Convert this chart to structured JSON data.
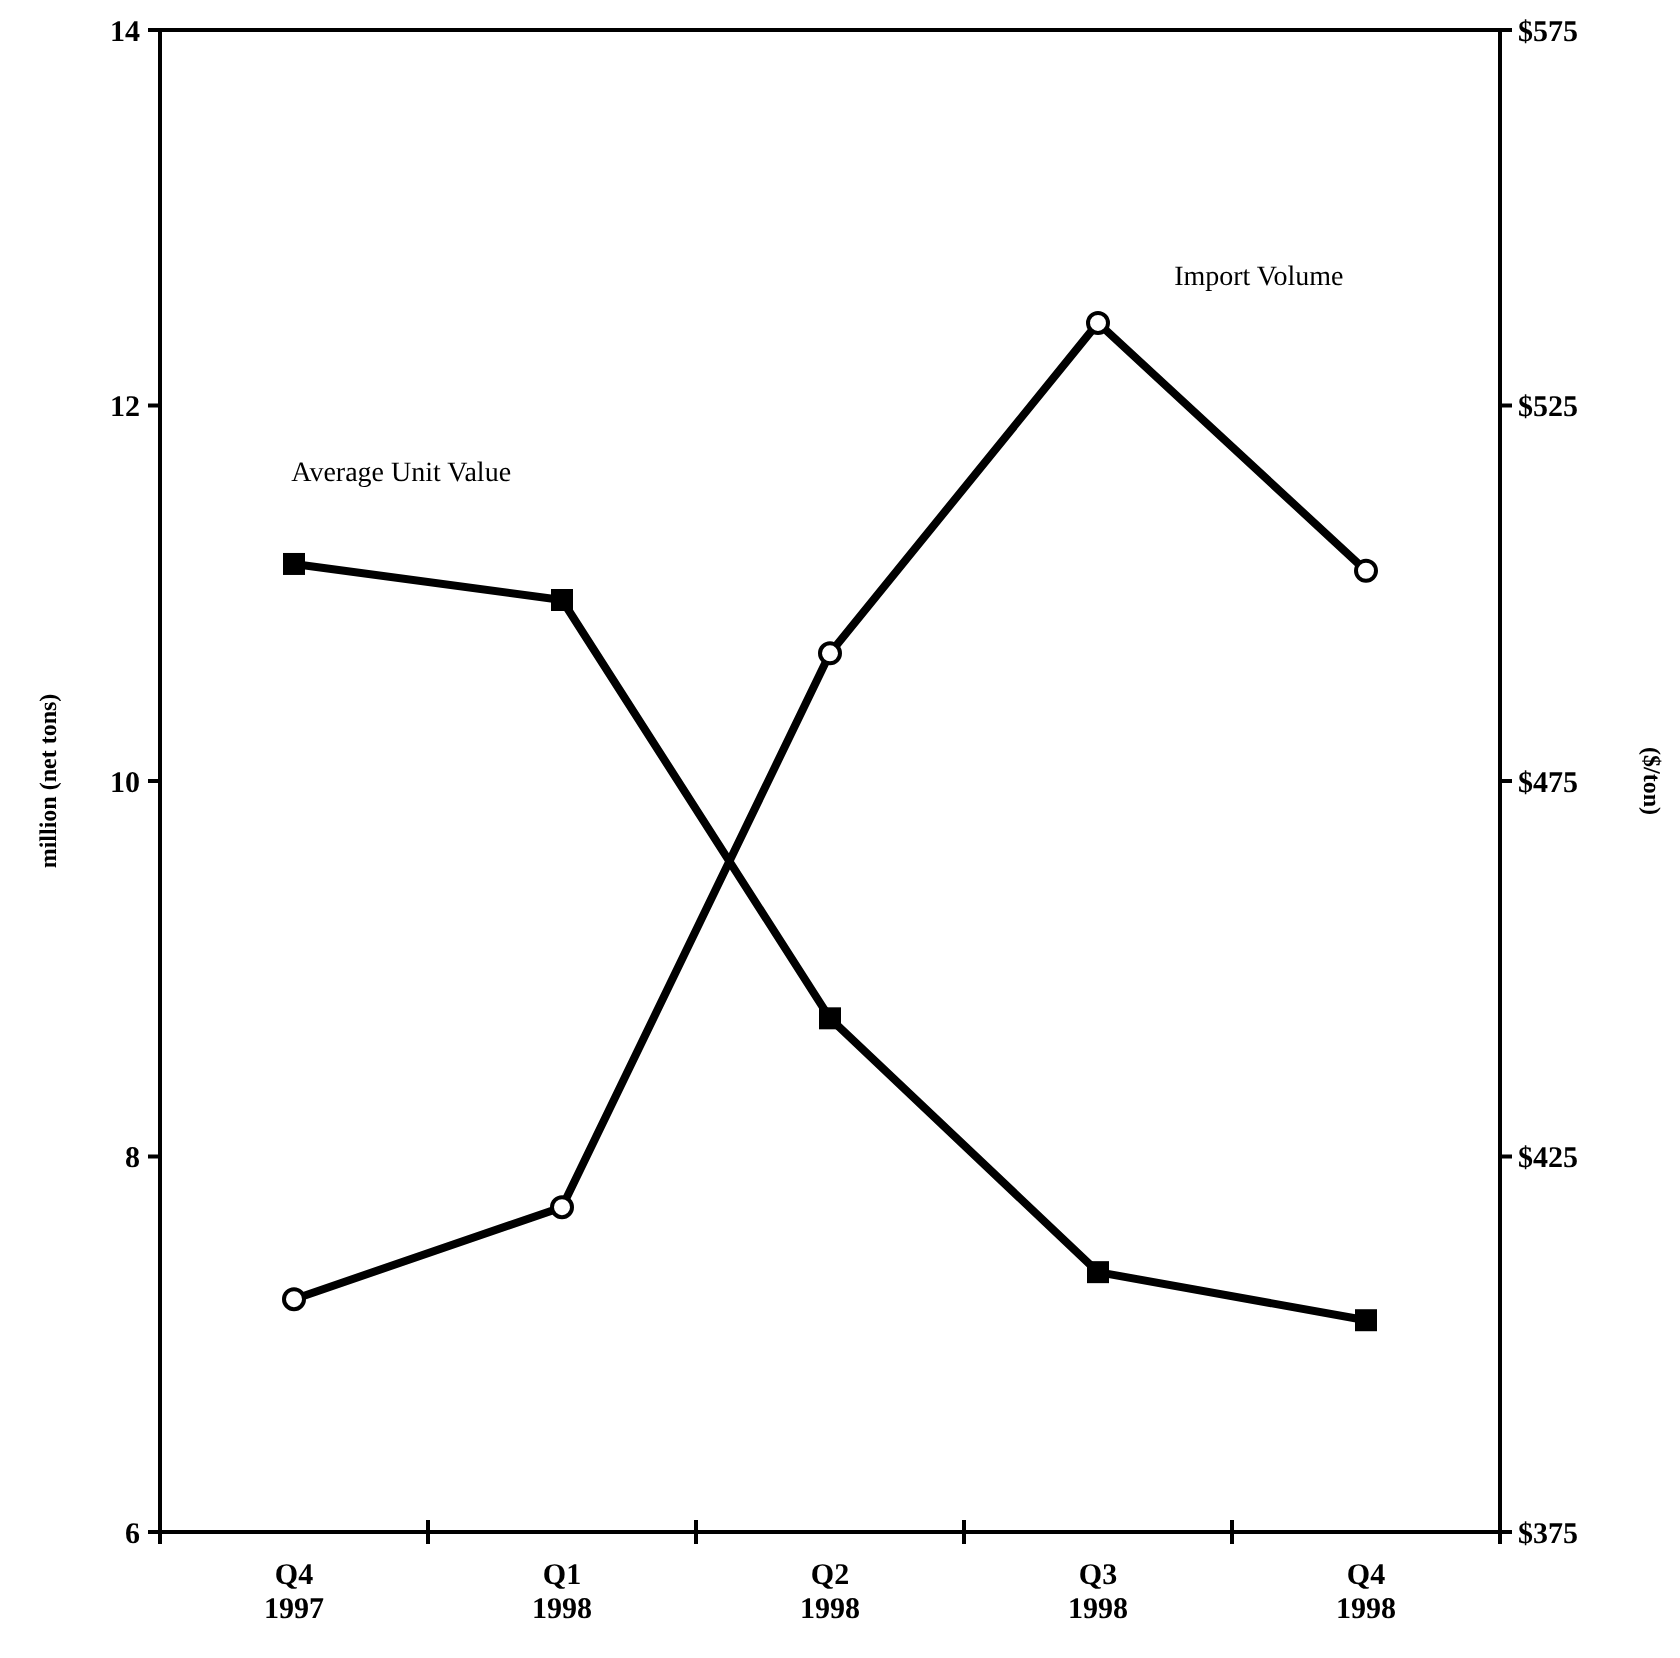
{
  "chart_data": {
    "type": "line",
    "ylabel": "million (net tons)",
    "y2label": "($/ton)",
    "categories": [
      "Q4\n1997",
      "Q1\n1998",
      "Q2\n1998",
      "Q3\n1998",
      "Q4\n1998"
    ],
    "ylim": [
      6,
      14
    ],
    "yticks": [
      6,
      8,
      10,
      12,
      14
    ],
    "y2lim": [
      375,
      575
    ],
    "y2ticks": [
      {
        "value": 375,
        "label": "$375"
      },
      {
        "value": 425,
        "label": "$425"
      },
      {
        "value": 475,
        "label": "$475"
      },
      {
        "value": 525,
        "label": "$525"
      },
      {
        "value": 575,
        "label": "$575"
      }
    ],
    "series": [
      {
        "name": "Import Volume",
        "color": "#000000",
        "marker": "circle",
        "values": [
          7.24,
          7.73,
          10.68,
          12.44,
          11.12
        ]
      },
      {
        "name": "Average Unit Value",
        "color": "#000000",
        "marker": "square",
        "axis": "y2",
        "values": [
          503.9,
          499.1,
          443.4,
          409.6,
          403.2
        ]
      }
    ],
    "grid": false
  }
}
